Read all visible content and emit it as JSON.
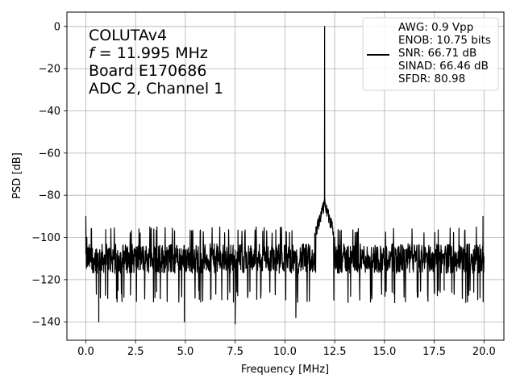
{
  "chart_data": {
    "type": "line",
    "title": "",
    "xlabel": "Frequency [MHz]",
    "ylabel": "PSD [dB]",
    "xlim": [
      -0.95,
      21.0
    ],
    "ylim": [
      -148.7,
      6.8
    ],
    "grid": true,
    "xticks": [
      0.0,
      2.5,
      5.0,
      7.5,
      10.0,
      12.5,
      15.0,
      17.5,
      20.0
    ],
    "xtick_labels": [
      "0.0",
      "2.5",
      "5.0",
      "7.5",
      "10.0",
      "12.5",
      "15.0",
      "17.5",
      "20.0"
    ],
    "yticks": [
      0,
      -20,
      -40,
      -60,
      -80,
      -100,
      -120,
      -140
    ],
    "ytick_labels": [
      "0",
      "−20",
      "−40",
      "−60",
      "−80",
      "−100",
      "−120",
      "−140"
    ],
    "annotation_lines": [
      "COLUTAv4",
      "= 11.995 MHz",
      "Board E170686",
      "ADC 2, Channel 1"
    ],
    "annotation_italic_prefix": "f",
    "legend_placement": "top-right",
    "legend_lines": [
      "AWG: 0.9 Vpp",
      "ENOB: 10.75 bits",
      "SNR: 66.71 dB",
      "SINAD: 66.46 dB",
      "SFDR: 80.98"
    ],
    "series": [
      {
        "color": "#000000",
        "noise_floor_db": -110,
        "noise_band_db": [
          -125,
          -95
        ],
        "x": [
          0.0,
          0.05,
          0.1,
          0.2,
          0.3,
          0.65,
          1.0,
          2.0,
          3.0,
          4.0,
          4.95,
          5.5,
          6.5,
          7.5,
          8.5,
          9.5,
          10.55,
          11.0,
          11.5,
          11.8,
          11.95,
          11.995,
          12.04,
          12.2,
          12.5,
          13.0,
          14.0,
          15.0,
          16.0,
          17.0,
          18.0,
          19.0,
          19.95,
          20.0
        ],
        "y": [
          -90,
          -100,
          -112,
          -108,
          -115,
          -140,
          -112,
          -110,
          -111,
          -110,
          -140,
          -110,
          -109,
          -141,
          -110,
          -112,
          -138,
          -105,
          -98,
          -88,
          -83,
          0,
          -84,
          -90,
          -100,
          -110,
          -111,
          -110,
          -109,
          -111,
          -110,
          -112,
          -90,
          -110
        ]
      }
    ]
  }
}
